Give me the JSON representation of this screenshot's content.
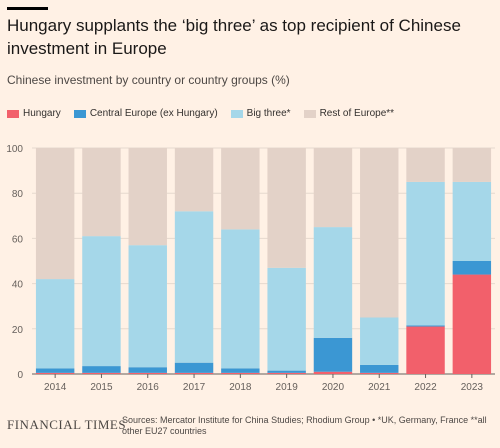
{
  "header": {
    "title": "Hungary supplants the ‘big three’ as top recipient of Chinese investment in Europe",
    "subtitle": "Chinese investment by country or country groups (%)"
  },
  "footer": {
    "brand": "FINANCIAL TIMES",
    "source": "Sources: Mercator Institute for China Studies; Rhodium Group • *UK, Germany, France **all other EU27 countries"
  },
  "chart_data": {
    "type": "bar",
    "stacked": true,
    "categories": [
      "2014",
      "2015",
      "2016",
      "2017",
      "2018",
      "2019",
      "2020",
      "2021",
      "2022",
      "2023"
    ],
    "series": [
      {
        "name": "Hungary",
        "color": "#f2606b",
        "values": [
          0.5,
          0.5,
          0.5,
          0.5,
          0.5,
          0.5,
          1,
          0.5,
          21,
          44
        ]
      },
      {
        "name": "Central Europe (ex Hungary)",
        "color": "#3b97d3",
        "values": [
          2,
          3,
          2.5,
          4.5,
          2,
          1,
          15,
          3.5,
          0.5,
          6
        ]
      },
      {
        "name": "Big three*",
        "color": "#a5d7e9",
        "values": [
          39.5,
          57.5,
          54,
          67,
          61.5,
          45.5,
          49,
          21,
          63.5,
          35
        ]
      },
      {
        "name": "Rest of Europe**",
        "color": "#e3d2c8",
        "values": [
          58,
          39,
          43,
          28,
          36,
          53,
          35,
          75,
          15,
          15
        ]
      }
    ],
    "ylim": [
      0,
      100
    ],
    "yticks": [
      0,
      20,
      40,
      60,
      80,
      100
    ],
    "grid": true,
    "legend": "top-left"
  }
}
